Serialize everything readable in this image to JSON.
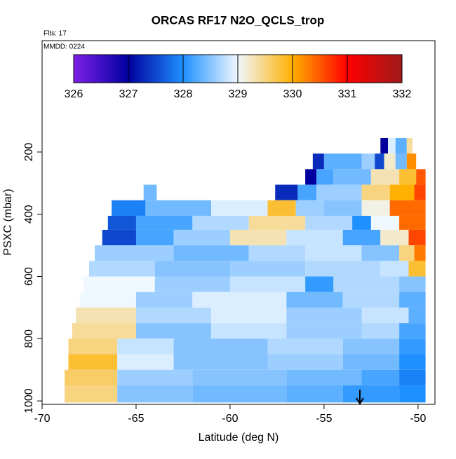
{
  "chart_data": {
    "type": "heatmap",
    "title": "ORCAS RF17 N2O_QCLS_trop",
    "annotations": [
      "Flts: 17",
      "MMDD: 0224"
    ],
    "xlabel": "Latitude (deg N)",
    "ylabel": "PSXC (mbar)",
    "xlim": [
      -70,
      -49.1
    ],
    "ylim": [
      1011,
      -158
    ],
    "xticks": [
      -70,
      -65,
      -60,
      -55,
      -50
    ],
    "yticks": [
      200,
      400,
      600,
      800,
      1000
    ],
    "colorbar": {
      "ticks": [
        326,
        327,
        328,
        329,
        330,
        331,
        332
      ],
      "colors": [
        "#7f1fe8",
        "#00009e",
        "#1e90ff",
        "#f0f8ff",
        "#ffb000",
        "#ff0000",
        "#9e1a1a"
      ]
    },
    "rows": [
      {
        "p": [
          155,
          205
        ],
        "cells": [
          [
            -52.0,
            -51.6,
            327.0
          ],
          [
            -51.6,
            -51.2,
            328.9
          ],
          [
            -51.2,
            -50.6,
            328.3
          ],
          [
            -50.6,
            -50.3,
            329.4
          ]
        ]
      },
      {
        "p": [
          205,
          255
        ],
        "cells": [
          [
            -55.6,
            -55.0,
            327.3
          ],
          [
            -55.0,
            -53.0,
            328.3
          ],
          [
            -53.0,
            -52.3,
            328.6
          ],
          [
            -52.3,
            -51.8,
            327.5
          ],
          [
            -51.8,
            -51.2,
            329.2
          ],
          [
            -51.2,
            -50.6,
            328.4
          ],
          [
            -50.6,
            -50.1,
            330.2
          ]
        ]
      },
      {
        "p": [
          255,
          305
        ],
        "cells": [
          [
            -56.0,
            -55.4,
            327.0
          ],
          [
            -55.4,
            -54.5,
            328.2
          ],
          [
            -54.5,
            -52.5,
            328.4
          ],
          [
            -52.5,
            -51.0,
            329.3
          ],
          [
            -51.0,
            -50.1,
            329.8
          ],
          [
            -50.1,
            -49.6,
            330.5
          ]
        ]
      },
      {
        "p": [
          305,
          355
        ],
        "cells": [
          [
            -64.6,
            -63.9,
            328.4
          ],
          [
            -57.6,
            -56.4,
            327.3
          ],
          [
            -56.4,
            -55.4,
            328.2
          ],
          [
            -55.4,
            -53.0,
            328.6
          ],
          [
            -53.0,
            -51.5,
            329.5
          ],
          [
            -51.5,
            -50.2,
            330.0
          ],
          [
            -50.2,
            -49.6,
            330.6
          ]
        ]
      },
      {
        "p": [
          355,
          405
        ],
        "cells": [
          [
            -66.3,
            -64.5,
            327.9
          ],
          [
            -64.5,
            -61.0,
            328.4
          ],
          [
            -61.0,
            -58.0,
            328.9
          ],
          [
            -58.0,
            -56.5,
            329.8
          ],
          [
            -56.5,
            -55.0,
            328.6
          ],
          [
            -55.0,
            -53.0,
            328.5
          ],
          [
            -53.0,
            -51.5,
            329.1
          ],
          [
            -51.5,
            -49.6,
            330.4
          ]
        ]
      },
      {
        "p": [
          405,
          450
        ],
        "cells": [
          [
            -66.5,
            -65.0,
            327.6
          ],
          [
            -65.0,
            -62.0,
            328.2
          ],
          [
            -62.0,
            -59.0,
            328.7
          ],
          [
            -59.0,
            -56.0,
            329.4
          ],
          [
            -56.0,
            -53.5,
            328.7
          ],
          [
            -53.5,
            -52.5,
            328.0
          ],
          [
            -52.5,
            -51.0,
            329.0
          ],
          [
            -51.0,
            -49.6,
            330.4
          ]
        ]
      },
      {
        "p": [
          450,
          500
        ],
        "cells": [
          [
            -66.8,
            -65.0,
            327.5
          ],
          [
            -65.0,
            -63.0,
            328.2
          ],
          [
            -63.0,
            -60.0,
            328.6
          ],
          [
            -60.0,
            -57.0,
            329.3
          ],
          [
            -57.0,
            -54.0,
            328.8
          ],
          [
            -54.0,
            -52.0,
            328.2
          ],
          [
            -52.0,
            -50.5,
            329.2
          ],
          [
            -50.5,
            -49.6,
            330.6
          ]
        ]
      },
      {
        "p": [
          500,
          550
        ],
        "cells": [
          [
            -67.2,
            -63.0,
            328.6
          ],
          [
            -63.0,
            -59.0,
            328.4
          ],
          [
            -59.0,
            -56.0,
            328.7
          ],
          [
            -56.0,
            -53.0,
            328.8
          ],
          [
            -53.0,
            -51.0,
            328.5
          ],
          [
            -51.0,
            -50.2,
            329.5
          ],
          [
            -50.2,
            -49.6,
            330.3
          ]
        ]
      },
      {
        "p": [
          550,
          600
        ],
        "cells": [
          [
            -67.5,
            -64.0,
            328.7
          ],
          [
            -64.0,
            -60.0,
            328.5
          ],
          [
            -60.0,
            -56.0,
            328.6
          ],
          [
            -56.0,
            -52.0,
            328.7
          ],
          [
            -52.0,
            -50.5,
            328.8
          ],
          [
            -50.5,
            -49.6,
            329.8
          ]
        ]
      },
      {
        "p": [
          600,
          650
        ],
        "cells": [
          [
            -67.8,
            -64.0,
            329.0
          ],
          [
            -64.0,
            -60.0,
            328.6
          ],
          [
            -60.0,
            -56.0,
            328.8
          ],
          [
            -56.0,
            -54.5,
            328.1
          ],
          [
            -54.5,
            -51.0,
            328.7
          ],
          [
            -51.0,
            -49.6,
            328.5
          ]
        ]
      },
      {
        "p": [
          650,
          700
        ],
        "cells": [
          [
            -68.0,
            -65.0,
            329.0
          ],
          [
            -65.0,
            -62.0,
            328.6
          ],
          [
            -62.0,
            -57.0,
            328.9
          ],
          [
            -57.0,
            -54.0,
            328.4
          ],
          [
            -54.0,
            -51.0,
            328.7
          ],
          [
            -51.0,
            -49.6,
            328.3
          ]
        ]
      },
      {
        "p": [
          700,
          750
        ],
        "cells": [
          [
            -68.2,
            -65.0,
            329.3
          ],
          [
            -65.0,
            -61.0,
            328.7
          ],
          [
            -61.0,
            -57.0,
            328.9
          ],
          [
            -57.0,
            -53.0,
            328.6
          ],
          [
            -53.0,
            -50.5,
            328.8
          ],
          [
            -50.5,
            -49.6,
            328.3
          ]
        ]
      },
      {
        "p": [
          750,
          800
        ],
        "cells": [
          [
            -68.4,
            -65.0,
            329.4
          ],
          [
            -65.0,
            -61.0,
            328.5
          ],
          [
            -61.0,
            -57.0,
            328.8
          ],
          [
            -57.0,
            -53.0,
            328.6
          ],
          [
            -53.0,
            -51.0,
            328.7
          ],
          [
            -51.0,
            -49.6,
            328.2
          ]
        ]
      },
      {
        "p": [
          800,
          850
        ],
        "cells": [
          [
            -68.6,
            -66.0,
            329.5
          ],
          [
            -66.0,
            -63.0,
            328.8
          ],
          [
            -63.0,
            -58.0,
            328.5
          ],
          [
            -58.0,
            -54.0,
            328.7
          ],
          [
            -54.0,
            -51.0,
            328.5
          ],
          [
            -51.0,
            -49.6,
            328.1
          ]
        ]
      },
      {
        "p": [
          850,
          900
        ],
        "cells": [
          [
            -68.6,
            -66.0,
            329.8
          ],
          [
            -66.0,
            -63.0,
            328.9
          ],
          [
            -63.0,
            -58.0,
            328.5
          ],
          [
            -58.0,
            -54.0,
            328.6
          ],
          [
            -54.0,
            -51.0,
            328.4
          ],
          [
            -51.0,
            -49.6,
            328.0
          ]
        ]
      },
      {
        "p": [
          900,
          950
        ],
        "cells": [
          [
            -68.8,
            -66.0,
            329.6
          ],
          [
            -66.0,
            -62.0,
            328.6
          ],
          [
            -62.0,
            -57.0,
            328.5
          ],
          [
            -57.0,
            -53.0,
            328.4
          ],
          [
            -53.0,
            -51.0,
            328.2
          ],
          [
            -51.0,
            -49.6,
            327.9
          ]
        ]
      },
      {
        "p": [
          950,
          1005
        ],
        "cells": [
          [
            -68.8,
            -66.0,
            329.5
          ],
          [
            -66.0,
            -62.0,
            328.5
          ],
          [
            -62.0,
            -57.0,
            328.4
          ],
          [
            -57.0,
            -54.0,
            328.3
          ],
          [
            -54.0,
            -51.0,
            328.1
          ],
          [
            -51.0,
            -49.6,
            328.0
          ]
        ]
      }
    ]
  }
}
